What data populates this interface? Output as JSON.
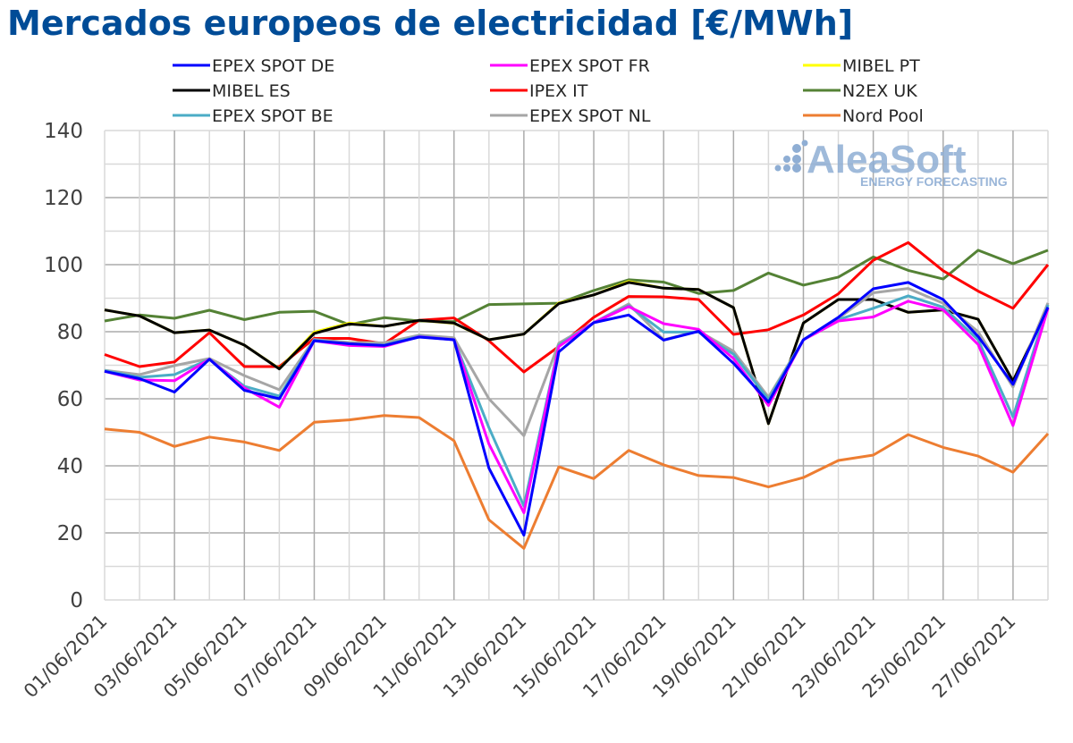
{
  "chart_data": {
    "type": "line",
    "title": "Mercados europeos de electricidad [€/MWh]",
    "xlabel": "",
    "ylabel": "",
    "ylim": [
      0,
      140
    ],
    "yticks": [
      0,
      20,
      40,
      60,
      80,
      100,
      120,
      140
    ],
    "grid": true,
    "legend_position": "top",
    "x": [
      "01/06/2021",
      "02/06/2021",
      "03/06/2021",
      "04/06/2021",
      "05/06/2021",
      "06/06/2021",
      "07/06/2021",
      "08/06/2021",
      "09/06/2021",
      "10/06/2021",
      "11/06/2021",
      "12/06/2021",
      "13/06/2021",
      "14/06/2021",
      "15/06/2021",
      "16/06/2021",
      "17/06/2021",
      "18/06/2021",
      "19/06/2021",
      "20/06/2021",
      "21/06/2021",
      "22/06/2021",
      "23/06/2021",
      "24/06/2021",
      "25/06/2021",
      "26/06/2021",
      "27/06/2021",
      "28/06/2021"
    ],
    "xtick_labels": [
      "01/06/2021",
      "03/06/2021",
      "05/06/2021",
      "07/06/2021",
      "09/06/2021",
      "11/06/2021",
      "13/06/2021",
      "15/06/2021",
      "17/06/2021",
      "19/06/2021",
      "21/06/2021",
      "23/06/2021",
      "25/06/2021",
      "27/06/2021"
    ],
    "series": [
      {
        "name": "EPEX SPOT DE",
        "color": "#0000FF",
        "values": [
          68.2,
          66.0,
          62.0,
          71.8,
          62.5,
          60.0,
          77.3,
          76.4,
          75.9,
          78.4,
          77.6,
          39.3,
          19.3,
          74.0,
          82.7,
          85.0,
          77.5,
          80.1,
          70.6,
          59.0,
          77.6,
          84.3,
          92.8,
          94.7,
          89.6,
          78.6,
          64.3,
          87.3
        ]
      },
      {
        "name": "EPEX SPOT FR",
        "color": "#FF00FF",
        "values": [
          68.2,
          65.6,
          65.4,
          71.8,
          63.2,
          57.5,
          77.3,
          75.9,
          75.6,
          78.5,
          77.6,
          46.5,
          26.0,
          75.6,
          82.7,
          87.5,
          82.4,
          80.7,
          72.0,
          58.0,
          77.6,
          83.2,
          84.4,
          89.1,
          86.5,
          76.2,
          52.0,
          86.9
        ]
      },
      {
        "name": "MIBEL PT",
        "color": "#FFFF00",
        "values": [
          86.5,
          84.7,
          79.7,
          80.5,
          76.0,
          69.0,
          79.9,
          82.6,
          81.6,
          83.4,
          82.5,
          77.6,
          79.3,
          88.6,
          91.0,
          95.0,
          93.0,
          92.6,
          87.2,
          52.6,
          82.6,
          89.6,
          89.6,
          85.8,
          86.5,
          83.7,
          65.3,
          86.9
        ]
      },
      {
        "name": "MIBEL ES",
        "color": "#000000",
        "values": [
          86.5,
          84.7,
          79.7,
          80.5,
          76.0,
          68.9,
          79.5,
          82.3,
          81.6,
          83.4,
          82.6,
          77.6,
          79.3,
          88.4,
          91.0,
          94.7,
          93.0,
          92.6,
          87.2,
          52.6,
          82.6,
          89.6,
          89.6,
          85.8,
          86.5,
          83.7,
          65.3,
          86.9
        ]
      },
      {
        "name": "IPEX IT",
        "color": "#FF0000",
        "values": [
          73.2,
          69.6,
          71.0,
          79.7,
          69.6,
          69.6,
          78.0,
          78.0,
          76.4,
          83.4,
          84.1,
          77.3,
          68.0,
          75.6,
          84.3,
          90.5,
          90.4,
          89.6,
          79.2,
          80.6,
          85.0,
          91.3,
          101.3,
          106.6,
          98.2,
          92.1,
          87.0,
          100.0
        ]
      },
      {
        "name": "N2EX UK",
        "color": "#548235",
        "values": [
          83.2,
          85.0,
          84.0,
          86.4,
          83.6,
          85.8,
          86.1,
          82.1,
          84.2,
          83.2,
          83.0,
          88.1,
          88.3,
          88.5,
          92.3,
          95.5,
          94.8,
          91.4,
          92.3,
          97.5,
          93.9,
          96.3,
          102.3,
          98.3,
          95.7,
          104.3,
          100.3,
          104.3
        ]
      },
      {
        "name": "EPEX SPOT BE",
        "color": "#4BACC6",
        "values": [
          68.4,
          66.4,
          67.2,
          71.8,
          63.7,
          60.8,
          77.5,
          76.2,
          76.0,
          78.7,
          77.6,
          51.4,
          28.0,
          76.0,
          82.7,
          87.8,
          79.9,
          79.9,
          73.3,
          59.8,
          77.6,
          83.6,
          87.0,
          90.7,
          87.3,
          77.6,
          54.6,
          88.0
        ]
      },
      {
        "name": "EPEX SPOT NL",
        "color": "#A6A6A6",
        "values": [
          68.5,
          67.2,
          69.9,
          72.0,
          66.9,
          62.7,
          77.7,
          76.8,
          76.7,
          79.0,
          78.2,
          60.0,
          49.0,
          76.6,
          82.7,
          88.3,
          77.6,
          80.2,
          74.2,
          60.5,
          77.6,
          84.0,
          91.6,
          92.9,
          88.5,
          80.0,
          63.5,
          88.6
        ]
      },
      {
        "name": "Nord Pool",
        "color": "#ED7D31",
        "values": [
          51.0,
          50.0,
          45.8,
          48.6,
          47.1,
          44.6,
          53.0,
          53.7,
          55.0,
          54.4,
          47.5,
          23.9,
          15.4,
          39.7,
          36.2,
          44.6,
          40.3,
          37.1,
          36.5,
          33.7,
          36.5,
          41.6,
          43.2,
          49.3,
          45.5,
          42.9,
          38.1,
          49.6
        ]
      }
    ]
  },
  "watermark": {
    "brand": "AleaSoft",
    "tagline": "ENERGY FORECASTING"
  }
}
